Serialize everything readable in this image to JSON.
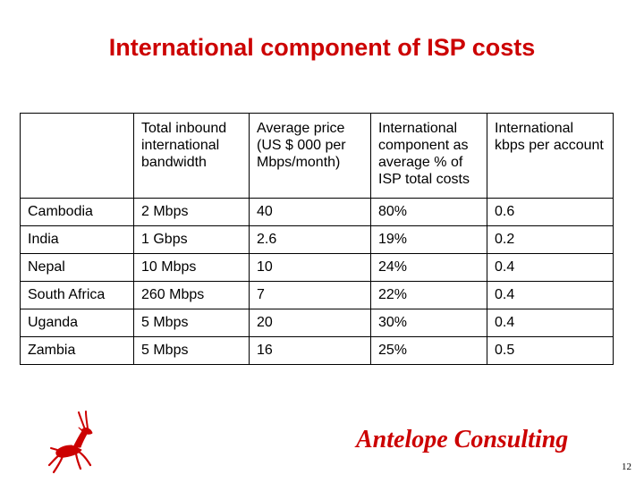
{
  "slide": {
    "title": "International component of ISP costs",
    "brand": "Antelope Consulting",
    "page_number": "12",
    "logo_icon": "antelope-icon",
    "accent_color": "#cc0000"
  },
  "table": {
    "headers": [
      "",
      "Total inbound international bandwidth",
      "Average price (US $ 000 per Mbps/month)",
      "International component as average % of ISP total costs",
      "International kbps per account"
    ],
    "rows": [
      [
        "Cambodia",
        "2 Mbps",
        "40",
        "80%",
        "0.6"
      ],
      [
        "India",
        "1 Gbps",
        "2.6",
        "19%",
        "0.2"
      ],
      [
        "Nepal",
        "10 Mbps",
        "10",
        "24%",
        "0.4"
      ],
      [
        "South Africa",
        "260 Mbps",
        "7",
        "22%",
        "0.4"
      ],
      [
        "Uganda",
        "5 Mbps",
        "20",
        "30%",
        "0.4"
      ],
      [
        "Zambia",
        "5 Mbps",
        "16",
        "25%",
        "0.5"
      ]
    ]
  }
}
